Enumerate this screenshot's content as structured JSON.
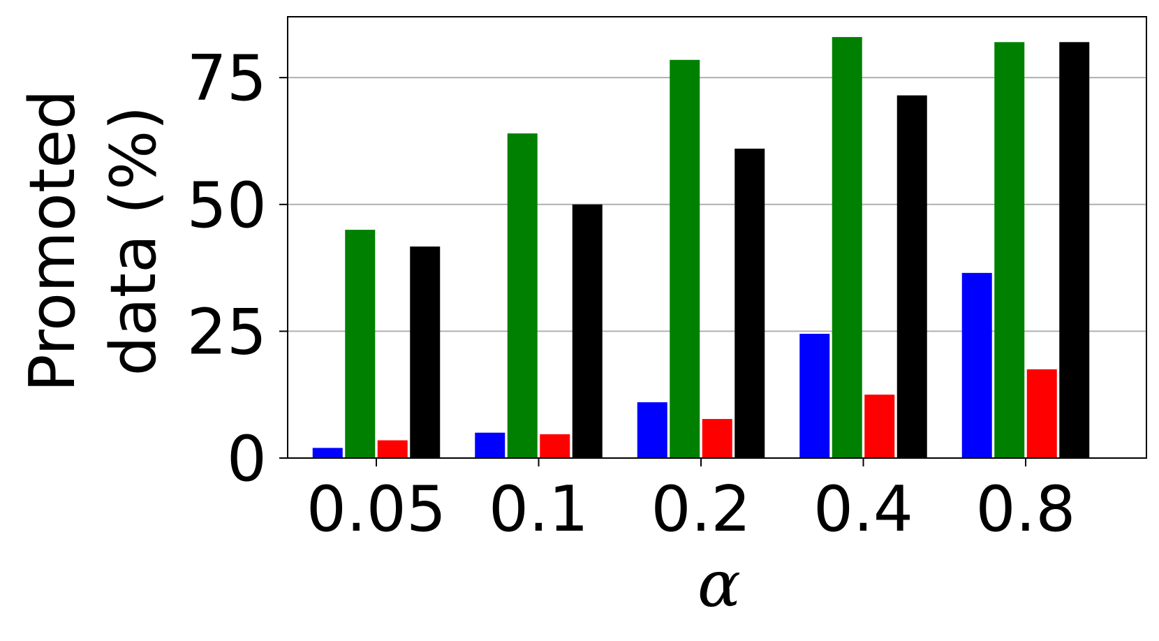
{
  "chart_data": {
    "type": "bar",
    "categories": [
      "0.05",
      "0.1",
      "0.2",
      "0.4",
      "0.8"
    ],
    "series": [
      {
        "color": "#0000ff",
        "values": [
          2,
          5,
          11,
          24.5,
          36.5
        ]
      },
      {
        "color": "#008000",
        "values": [
          45,
          64,
          78.5,
          83,
          82
        ]
      },
      {
        "color": "#ff0000",
        "values": [
          3.5,
          4.7,
          7.7,
          12.5,
          17.5
        ]
      },
      {
        "color": "#000000",
        "values": [
          41.7,
          50,
          61,
          71.5,
          82
        ]
      }
    ],
    "xlabel": "α",
    "ylabel": "Promoted data (%)",
    "ylabel_lines": [
      "Promoted",
      "data (%)"
    ],
    "yticks": [
      0,
      25,
      50,
      75
    ],
    "ylim": [
      0,
      87
    ],
    "grid": "y",
    "title": ""
  }
}
